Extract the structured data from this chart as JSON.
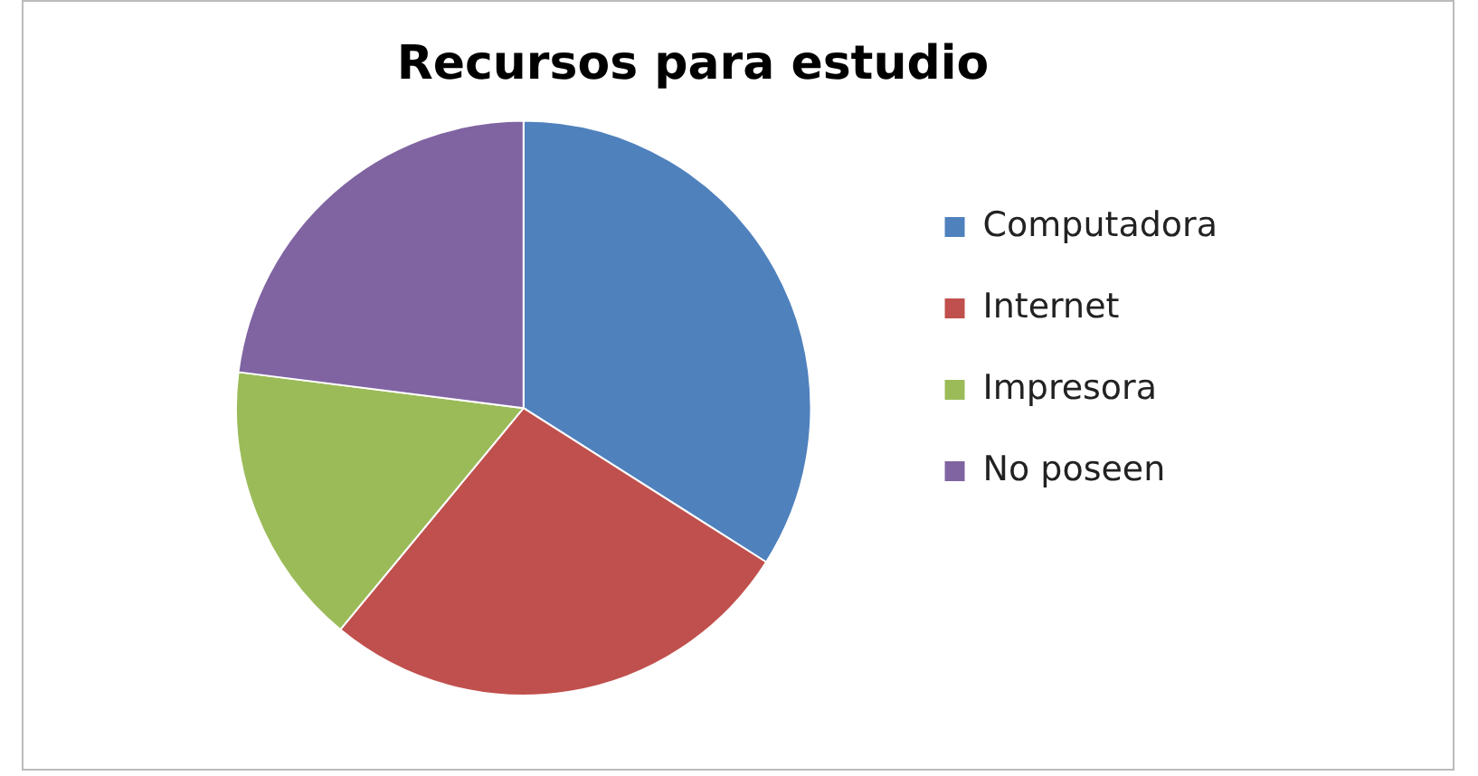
{
  "chart_data": {
    "type": "pie",
    "title": "Recursos para estudio",
    "categories": [
      "Computadora",
      "Internet",
      "Impresora",
      "No poseen"
    ],
    "values": [
      34,
      27,
      16,
      23
    ],
    "colors": [
      "#4f81bd",
      "#c0504d",
      "#9bbb59",
      "#8064a2"
    ],
    "legend": "right"
  }
}
